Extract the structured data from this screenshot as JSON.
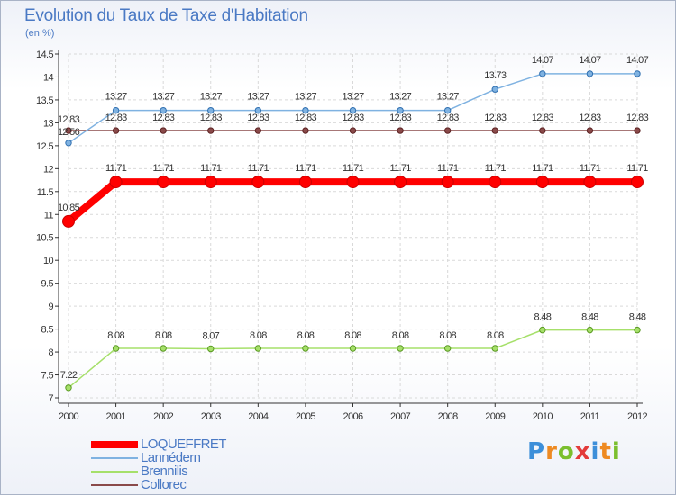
{
  "colors": {
    "title": "#4a79c4",
    "axis": "#333333",
    "grid": "#d9d9d9",
    "LOQUEFFRET": "#ff0000",
    "Lannedern": "#7fb2e1",
    "Brennilis": "#a6e06a",
    "Collorec": "#8a4a4a"
  },
  "logo": {
    "text": "Proxiti",
    "letters": [
      "P",
      "r",
      "o",
      "x",
      "i",
      "t",
      "i"
    ],
    "letter_colors": [
      "#3d8fd9",
      "#ee8a22",
      "#7bbf2e",
      "#e33b3b",
      "#3d8fd9",
      "#ee8a22",
      "#7bbf2e"
    ]
  },
  "chart_data": {
    "type": "line",
    "title": "Evolution du Taux de Taxe d'Habitation",
    "subtitle": "(en %)",
    "xlabel": "",
    "ylabel": "",
    "ylim": [
      7,
      14.5
    ],
    "yticks": [
      "7",
      "7.5",
      "8",
      "8.5",
      "9",
      "9.5",
      "10",
      "10.5",
      "11",
      "11.5",
      "12",
      "12.5",
      "13",
      "13.5",
      "14",
      "14.5"
    ],
    "x": [
      "2000",
      "2001",
      "2002",
      "2003",
      "2004",
      "2005",
      "2006",
      "2007",
      "2008",
      "2009",
      "2010",
      "2011",
      "2012"
    ],
    "series": [
      {
        "name": "LOQUEFFRET",
        "color": "#ff0000",
        "values": [
          10.85,
          11.71,
          11.71,
          11.71,
          11.71,
          11.71,
          11.71,
          11.71,
          11.71,
          11.71,
          11.71,
          11.71,
          11.71
        ],
        "labels": [
          "10.85",
          "11.71",
          "11.71",
          "11.71",
          "11.71",
          "11.71",
          "11.71",
          "11.71",
          "11.71",
          "11.71",
          "11.71",
          "11.71",
          "11.71"
        ]
      },
      {
        "name": "Lannédern",
        "color": "#7fb2e1",
        "values": [
          12.56,
          13.27,
          13.27,
          13.27,
          13.27,
          13.27,
          13.27,
          13.27,
          13.27,
          13.73,
          14.07,
          14.07,
          14.07
        ],
        "labels": [
          "12.56",
          "13.27",
          "13.27",
          "13.27",
          "13.27",
          "13.27",
          "13.27",
          "13.27",
          "13.27",
          "13.73",
          "14.07",
          "14.07",
          "14.07"
        ]
      },
      {
        "name": "Brennilis",
        "color": "#a6e06a",
        "values": [
          7.22,
          8.08,
          8.08,
          8.07,
          8.08,
          8.08,
          8.08,
          8.08,
          8.08,
          8.08,
          8.48,
          8.48,
          8.48
        ],
        "labels": [
          "7.22",
          "8.08",
          "8.08",
          "8.07",
          "8.08",
          "8.08",
          "8.08",
          "8.08",
          "8.08",
          "8.08",
          "8.48",
          "8.48",
          "8.48"
        ]
      },
      {
        "name": "Collorec",
        "color": "#8a4a4a",
        "values": [
          12.83,
          12.83,
          12.83,
          12.83,
          12.83,
          12.83,
          12.83,
          12.83,
          12.83,
          12.83,
          12.83,
          12.83,
          12.83
        ],
        "labels": [
          "12.83",
          "12.83",
          "12.83",
          "12.83",
          "12.83",
          "12.83",
          "12.83",
          "12.83",
          "12.83",
          "12.83",
          "12.83",
          "12.83",
          "12.83"
        ]
      }
    ],
    "legend": [
      "LOQUEFFRET",
      "Lannédern",
      "Brennilis",
      "Collorec"
    ],
    "legend_position": "bottom-left"
  }
}
